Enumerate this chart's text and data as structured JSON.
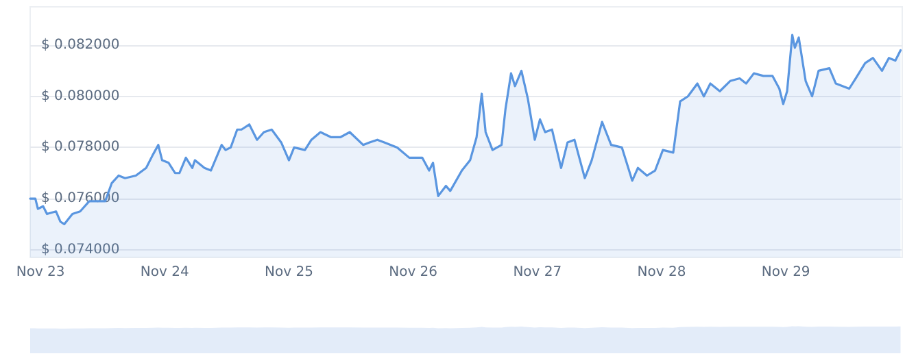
{
  "chart_data": {
    "type": "area",
    "x": [
      "--11-22T22:00",
      "--11-22T23:00",
      "--11-22T23:30",
      "--11-23T00:30",
      "--11-23T01:15",
      "--11-23T03:00",
      "--11-23T03:50",
      "--11-23T04:35",
      "--11-23T06:10",
      "--11-23T07:40",
      "--11-23T09:25",
      "--11-23T10:45",
      "--11-23T12:30",
      "--11-23T13:45",
      "--11-23T15:05",
      "--11-23T16:20",
      "--11-23T18:25",
      "--11-23T20:25",
      "--11-23T21:40",
      "--11-23T22:45",
      "--11-23T23:30",
      "--11-24T00:45",
      "--11-24T02:00",
      "--11-24T02:50",
      "--11-24T04:05",
      "--11-24T05:20",
      "--11-24T05:50",
      "--11-24T07:40",
      "--11-24T08:55",
      "--11-24T11:00",
      "--11-24T11:45",
      "--11-24T12:45",
      "--11-24T14:00",
      "--11-24T14:50",
      "--11-24T16:20",
      "--11-24T17:50",
      "--11-24T19:10",
      "--11-24T20:40",
      "--11-24T22:30",
      "--11-25T00:00",
      "--11-25T01:00",
      "--11-25T03:05",
      "--11-25T04:20",
      "--11-25T06:05",
      "--11-25T08:10",
      "--11-25T09:55",
      "--11-25T11:45",
      "--11-25T14:20",
      "--11-25T15:35",
      "--11-25T17:05",
      "--11-25T18:25",
      "--11-25T20:55",
      "--11-25T23:15",
      "--11-26T01:45",
      "--11-26T03:05",
      "--11-26T03:50",
      "--11-26T04:50",
      "--11-26T06:20",
      "--11-26T07:10",
      "--11-26T09:25",
      "--11-26T11:00",
      "--11-26T12:15",
      "--11-26T13:15",
      "--11-26T14:00",
      "--11-26T15:20",
      "--11-26T17:05",
      "--11-26T17:50",
      "--11-26T18:55",
      "--11-26T19:40",
      "--11-26T20:55",
      "--11-26T22:10",
      "--11-26T23:30",
      "--11-27T00:30",
      "--11-27T01:30",
      "--11-27T02:50",
      "--11-27T04:35",
      "--11-27T05:50",
      "--11-27T07:10",
      "--11-27T09:10",
      "--11-27T10:30",
      "--11-27T12:30",
      "--11-27T14:15",
      "--11-27T16:20",
      "--11-27T18:20",
      "--11-27T19:25",
      "--11-27T21:10",
      "--11-27T22:45",
      "--11-28T00:15",
      "--11-28T02:15",
      "--11-28T03:35",
      "--11-28T05:05",
      "--11-28T06:55",
      "--11-28T08:10",
      "--11-28T09:25",
      "--11-28T11:15",
      "--11-28T13:15",
      "--11-28T15:05",
      "--11-28T16:20",
      "--11-28T17:50",
      "--11-28T19:40",
      "--11-28T21:25",
      "--11-28T22:45",
      "--11-28T23:30",
      "--11-29T00:15",
      "--11-29T01:15",
      "--11-29T01:45",
      "--11-29T02:30",
      "--11-29T03:50",
      "--11-29T05:05",
      "--11-29T06:20",
      "--11-29T08:25",
      "--11-29T09:40",
      "--11-29T12:15",
      "--11-29T13:30",
      "--11-29T15:20",
      "--11-29T16:50",
      "--11-29T18:35",
      "--11-29T19:55",
      "--11-29T21:10",
      "--11-29T22:10"
    ],
    "series": [
      {
        "color": "#5a96e0",
        "values": [
          0.076,
          0.076,
          0.0756,
          0.0757,
          0.0754,
          0.0755,
          0.0751,
          0.075,
          0.0754,
          0.0755,
          0.0759,
          0.0759,
          0.0759,
          0.0766,
          0.0769,
          0.0768,
          0.0769,
          0.0772,
          0.0777,
          0.0781,
          0.0775,
          0.0774,
          0.077,
          0.077,
          0.0776,
          0.0772,
          0.0775,
          0.0772,
          0.0771,
          0.0781,
          0.0779,
          0.078,
          0.0787,
          0.0787,
          0.0789,
          0.0783,
          0.0786,
          0.0787,
          0.0782,
          0.0775,
          0.078,
          0.0779,
          0.0783,
          0.0786,
          0.0784,
          0.0784,
          0.0786,
          0.0781,
          0.0782,
          0.0783,
          0.0782,
          0.078,
          0.0776,
          0.0776,
          0.0771,
          0.0774,
          0.0761,
          0.0765,
          0.0763,
          0.0771,
          0.0775,
          0.0784,
          0.0801,
          0.0786,
          0.0779,
          0.0781,
          0.0795,
          0.0809,
          0.0804,
          0.081,
          0.0799,
          0.0783,
          0.0791,
          0.0786,
          0.0787,
          0.0772,
          0.0782,
          0.0783,
          0.0768,
          0.0775,
          0.079,
          0.0781,
          0.078,
          0.0767,
          0.0772,
          0.0769,
          0.0771,
          0.0779,
          0.0778,
          0.0798,
          0.08,
          0.0805,
          0.08,
          0.0805,
          0.0802,
          0.0806,
          0.0807,
          0.0805,
          0.0809,
          0.0808,
          0.0808,
          0.0803,
          0.0797,
          0.0802,
          0.0824,
          0.0819,
          0.0823,
          0.0806,
          0.08,
          0.081,
          0.0811,
          0.0805,
          0.0803,
          0.0807,
          0.0813,
          0.0815,
          0.081,
          0.0815,
          0.0814,
          0.0818
        ]
      }
    ],
    "xlim": [
      "--11-22T22:00",
      "--11-29T22:30"
    ],
    "xticks": [
      {
        "value": "--11-23",
        "label": "Nov 23"
      },
      {
        "value": "--11-24",
        "label": "Nov 24"
      },
      {
        "value": "--11-25",
        "label": "Nov 25"
      },
      {
        "value": "--11-26",
        "label": "Nov 26"
      },
      {
        "value": "--11-27",
        "label": "Nov 27"
      },
      {
        "value": "--11-28",
        "label": "Nov 28"
      },
      {
        "value": "--11-29",
        "label": "Nov 29"
      }
    ],
    "ylim": [
      0.0737,
      0.0835
    ],
    "yticks": [
      {
        "value": 0.074,
        "label": "$ 0.074000"
      },
      {
        "value": 0.076,
        "label": "$ 0.076000"
      },
      {
        "value": 0.078,
        "label": "$ 0.078000"
      },
      {
        "value": 0.08,
        "label": "$ 0.080000"
      },
      {
        "value": 0.082,
        "label": "$ 0.082000"
      }
    ],
    "grid": "y",
    "marker": "none",
    "line_style": "solid"
  }
}
